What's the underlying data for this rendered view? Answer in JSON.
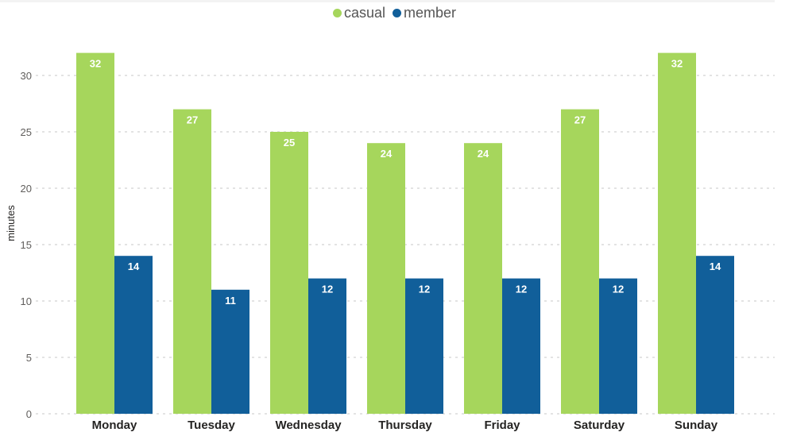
{
  "chart_data": {
    "type": "bar",
    "categories": [
      "Monday",
      "Tuesday",
      "Wednesday",
      "Thursday",
      "Friday",
      "Saturday",
      "Sunday"
    ],
    "series": [
      {
        "name": "casual",
        "values": [
          32,
          27,
          25,
          24,
          24,
          27,
          32
        ],
        "color": "#a6d65c"
      },
      {
        "name": "member",
        "values": [
          14,
          11,
          12,
          12,
          12,
          12,
          14
        ],
        "color": "#115f9a"
      }
    ],
    "title": "",
    "xlabel": "",
    "ylabel": "minutes",
    "ylim": [
      0,
      32
    ],
    "yticks": [
      0,
      5,
      10,
      15,
      20,
      25,
      30
    ],
    "grid": true,
    "grid_style": "dotted",
    "legend_position": "top-center",
    "data_labels": true
  }
}
